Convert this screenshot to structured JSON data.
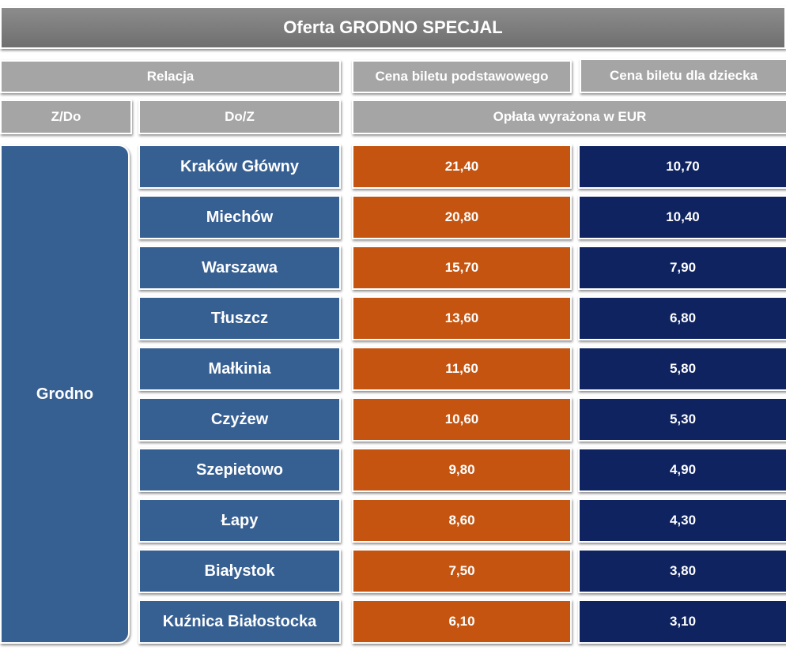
{
  "title": "Oferta GRODNO SPECJAL",
  "headers": {
    "relacja": "Relacja",
    "cena_podstawowa": "Cena biletu podstawowego",
    "cena_dziecko": "Cena biletu dla dziecka",
    "z_do": "Z/Do",
    "do_z": "Do/Z",
    "oplata": "Opłata wyrażona w EUR"
  },
  "origin": "Grodno",
  "rows": [
    [
      "Kraków Główny",
      "21,40",
      "10,70"
    ],
    [
      "Miechów",
      "20,80",
      "10,40"
    ],
    [
      "Warszawa",
      "15,70",
      "7,90"
    ],
    [
      "Tłuszcz",
      "13,60",
      "6,80"
    ],
    [
      "Małkinia",
      "11,60",
      "5,80"
    ],
    [
      "Czyżew",
      "10,60",
      "5,30"
    ],
    [
      "Szepietowo",
      "9,80",
      "4,90"
    ],
    [
      "Łapy",
      "8,60",
      "4,30"
    ],
    [
      "Białystok",
      "7,50",
      "3,80"
    ],
    [
      "Kuźnica Białostocka",
      "6,10",
      "3,10"
    ]
  ]
}
